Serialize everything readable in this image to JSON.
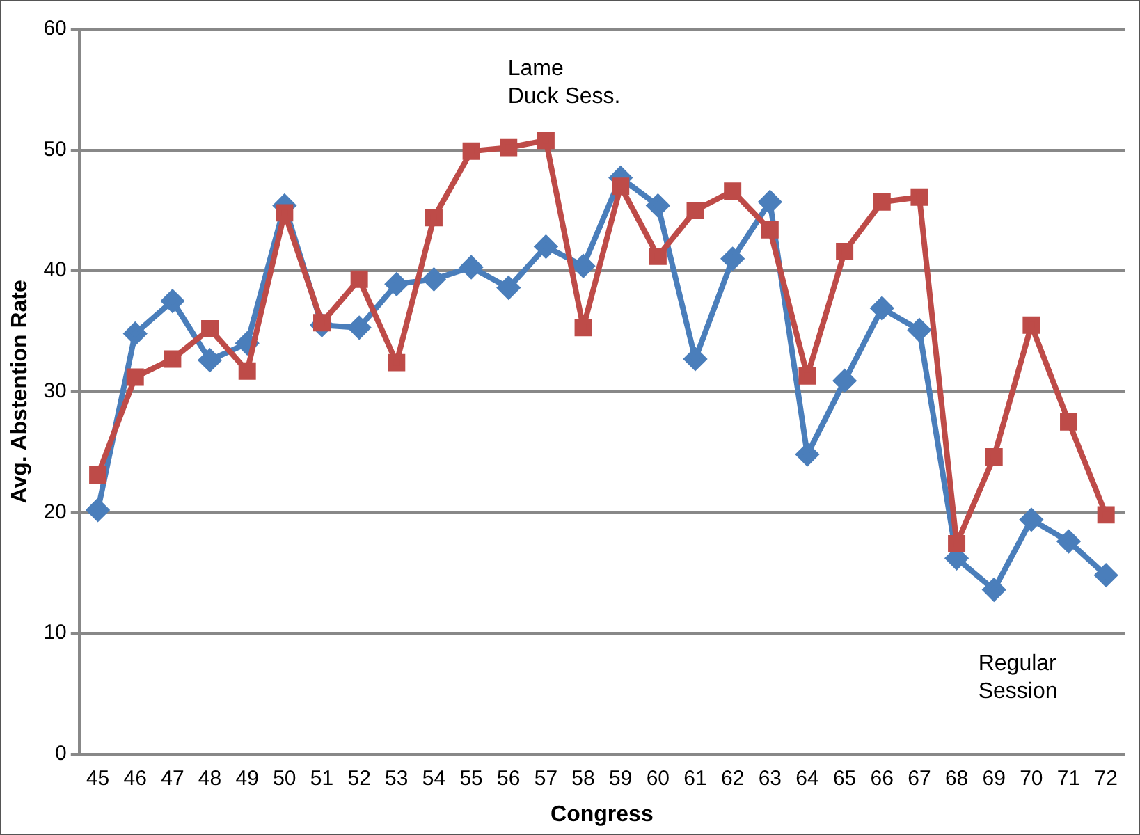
{
  "chart_data": {
    "type": "line",
    "xlabel": "Congress",
    "ylabel": "Avg. Abstention Rate",
    "categories": [
      "45",
      "46",
      "47",
      "48",
      "49",
      "50",
      "51",
      "52",
      "53",
      "54",
      "55",
      "56",
      "57",
      "58",
      "59",
      "60",
      "61",
      "62",
      "63",
      "64",
      "65",
      "66",
      "67",
      "68",
      "69",
      "70",
      "71",
      "72"
    ],
    "series": [
      {
        "color": "#4a7ebb",
        "marker": "diamond",
        "values": [
          20.2,
          34.8,
          37.5,
          32.6,
          34.0,
          45.4,
          35.5,
          35.3,
          38.9,
          39.3,
          40.3,
          38.6,
          42.0,
          40.4,
          47.7,
          45.4,
          32.7,
          41.0,
          45.7,
          24.8,
          30.9,
          36.9,
          35.1,
          16.2,
          13.6,
          19.4,
          17.6,
          14.8
        ]
      },
      {
        "color": "#be4b48",
        "marker": "square",
        "values": [
          23.1,
          31.2,
          32.7,
          35.2,
          31.7,
          44.8,
          35.7,
          39.3,
          32.4,
          44.4,
          49.9,
          50.2,
          50.8,
          35.3,
          47.0,
          41.2,
          45.0,
          46.6,
          43.4,
          31.3,
          41.6,
          45.7,
          46.1,
          17.4,
          24.6,
          35.5,
          27.5,
          19.8
        ]
      }
    ],
    "ylim": [
      0,
      60
    ],
    "yticks": [
      0,
      10,
      20,
      30,
      40,
      50,
      60
    ],
    "grid": "y",
    "legend": false,
    "annotations": [
      "Lame\nDuck Sess.",
      "Regular\nSession"
    ]
  }
}
